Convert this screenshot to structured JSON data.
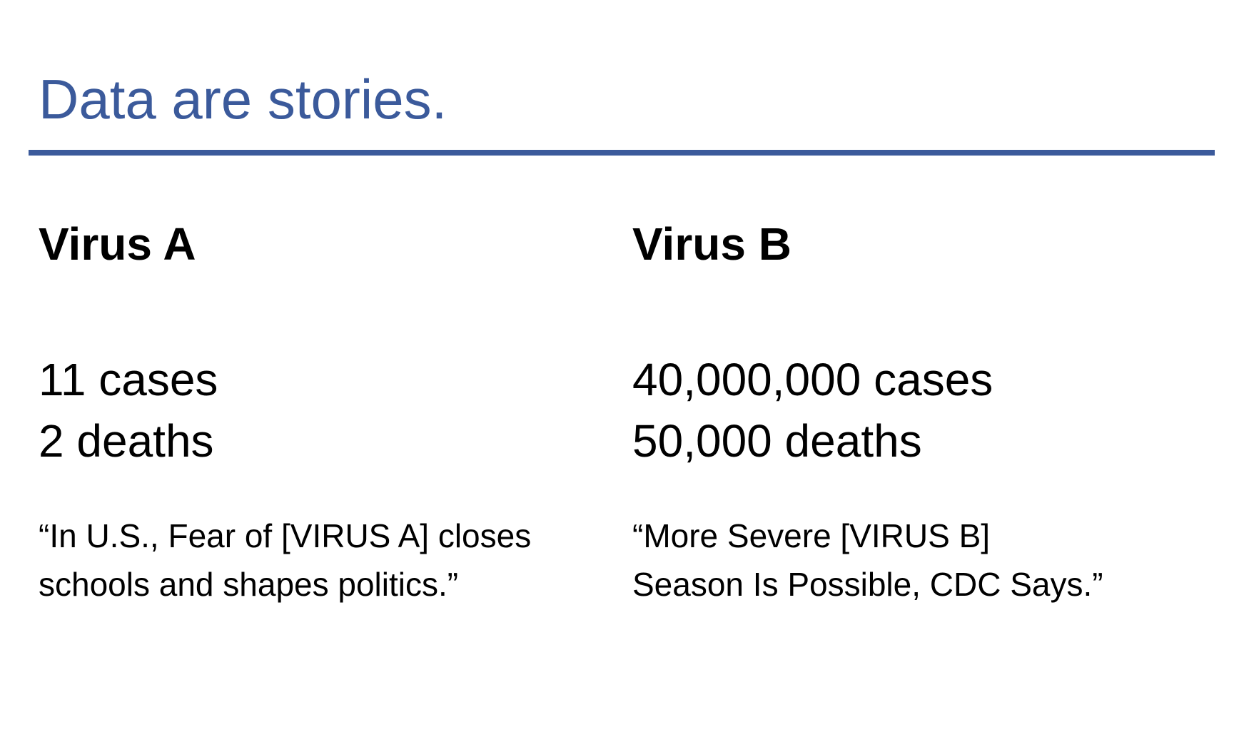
{
  "slide": {
    "title": "Data are stories.",
    "accent_color": "#3b5a9b",
    "columns": [
      {
        "heading": "Virus A",
        "stats": [
          "11 cases",
          "2 deaths"
        ],
        "quote_lines": [
          "“In U.S., Fear of [VIRUS A] closes",
          "schools and shapes politics.”"
        ]
      },
      {
        "heading": "Virus B",
        "stats": [
          "40,000,000 cases",
          "50,000 deaths"
        ],
        "quote_lines": [
          "“More Severe [VIRUS B]",
          "Season Is Possible, CDC Says.”"
        ]
      }
    ]
  }
}
